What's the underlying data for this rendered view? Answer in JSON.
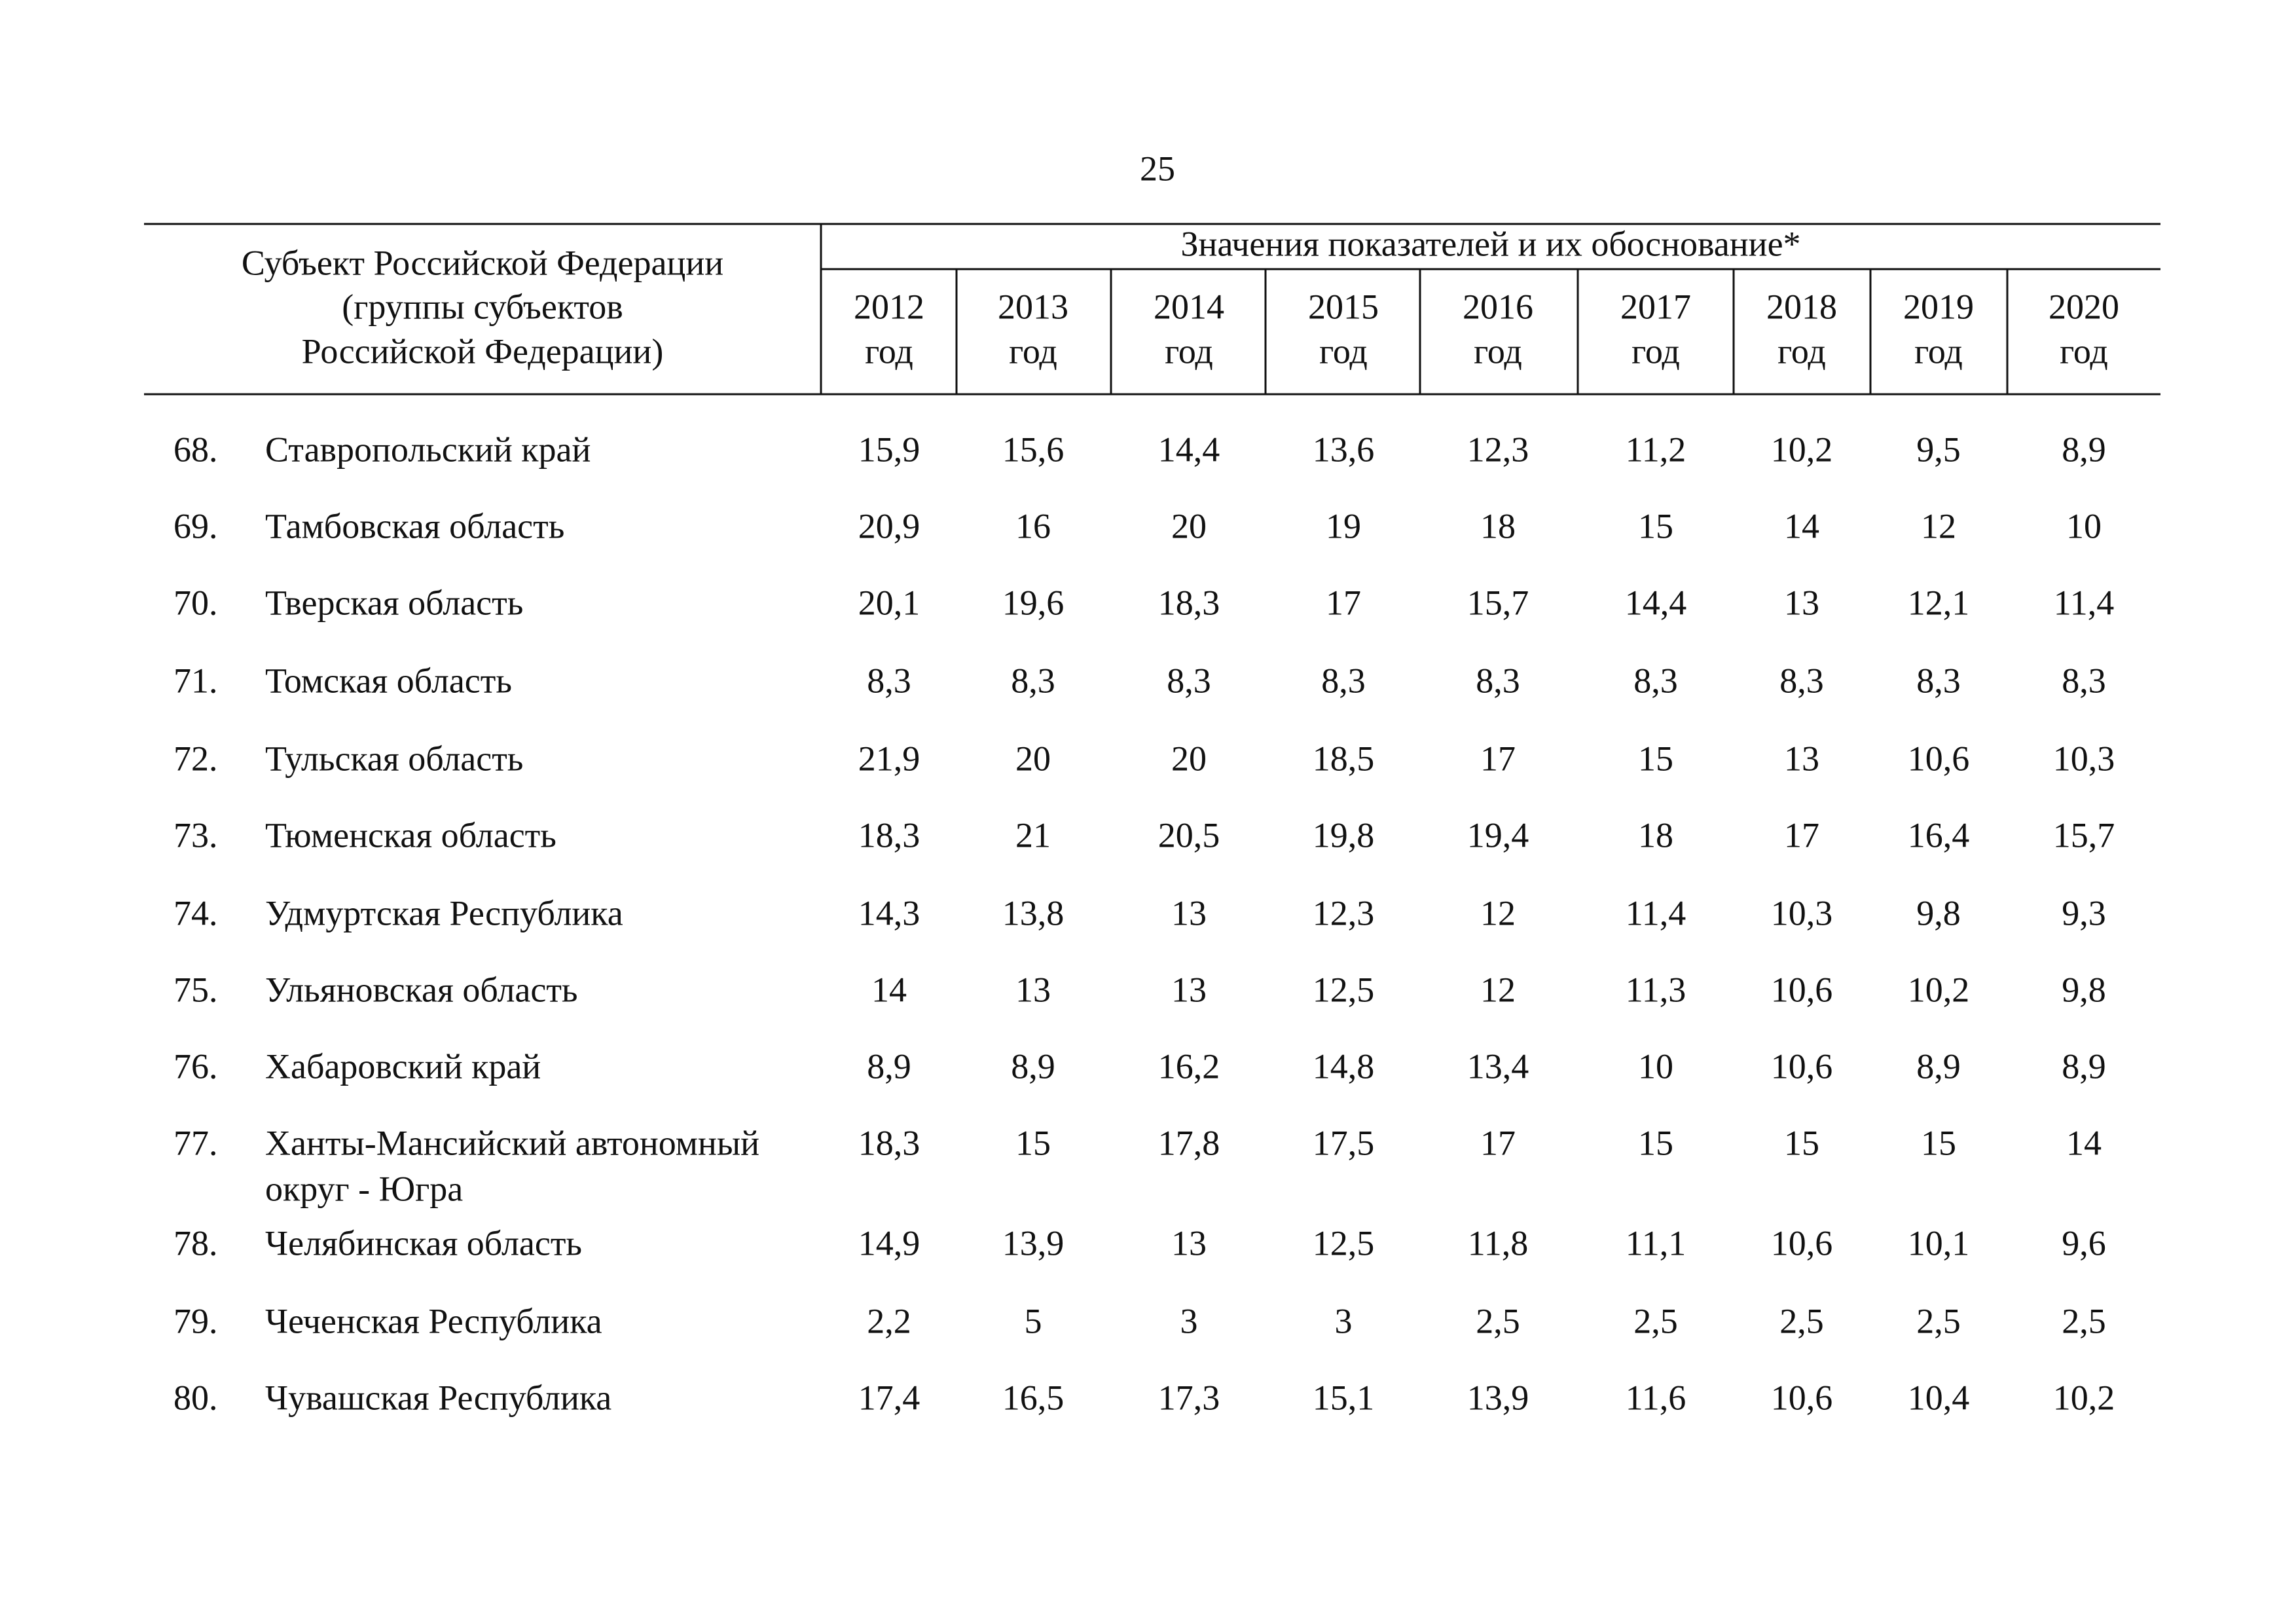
{
  "page_number": "25",
  "table": {
    "subject_header": [
      "Субъект Российской Федерации",
      "(группы субъектов",
      "Российской Федерации)"
    ],
    "values_header": "Значения показателей и их обоснование*",
    "columns": [
      {
        "year": "2012",
        "unit": "год"
      },
      {
        "year": "2013",
        "unit": "год"
      },
      {
        "year": "2014",
        "unit": "год"
      },
      {
        "year": "2015",
        "unit": "год"
      },
      {
        "year": "2016",
        "unit": "год"
      },
      {
        "year": "2017",
        "unit": "год"
      },
      {
        "year": "2018",
        "unit": "год"
      },
      {
        "year": "2019",
        "unit": "год"
      },
      {
        "year": "2020",
        "unit": "год"
      }
    ],
    "rows": [
      {
        "number": "68.",
        "name": [
          "Ставропольский край"
        ],
        "values": [
          "15,9",
          "15,6",
          "14,4",
          "13,6",
          "12,3",
          "11,2",
          "10,2",
          "9,5",
          "8,9"
        ]
      },
      {
        "number": "69.",
        "name": [
          "Тамбовская область"
        ],
        "values": [
          "20,9",
          "16",
          "20",
          "19",
          "18",
          "15",
          "14",
          "12",
          "10"
        ]
      },
      {
        "number": "70.",
        "name": [
          "Тверская область"
        ],
        "values": [
          "20,1",
          "19,6",
          "18,3",
          "17",
          "15,7",
          "14,4",
          "13",
          "12,1",
          "11,4"
        ]
      },
      {
        "number": "71.",
        "name": [
          "Томская область"
        ],
        "values": [
          "8,3",
          "8,3",
          "8,3",
          "8,3",
          "8,3",
          "8,3",
          "8,3",
          "8,3",
          "8,3"
        ]
      },
      {
        "number": "72.",
        "name": [
          "Тульская область"
        ],
        "values": [
          "21,9",
          "20",
          "20",
          "18,5",
          "17",
          "15",
          "13",
          "10,6",
          "10,3"
        ]
      },
      {
        "number": "73.",
        "name": [
          "Тюменская область"
        ],
        "values": [
          "18,3",
          "21",
          "20,5",
          "19,8",
          "19,4",
          "18",
          "17",
          "16,4",
          "15,7"
        ]
      },
      {
        "number": "74.",
        "name": [
          "Удмуртская Республика"
        ],
        "values": [
          "14,3",
          "13,8",
          "13",
          "12,3",
          "12",
          "11,4",
          "10,3",
          "9,8",
          "9,3"
        ]
      },
      {
        "number": "75.",
        "name": [
          "Ульяновская область"
        ],
        "values": [
          "14",
          "13",
          "13",
          "12,5",
          "12",
          "11,3",
          "10,6",
          "10,2",
          "9,8"
        ]
      },
      {
        "number": "76.",
        "name": [
          "Хабаровский край"
        ],
        "values": [
          "8,9",
          "8,9",
          "16,2",
          "14,8",
          "13,4",
          "10",
          "10,6",
          "8,9",
          "8,9"
        ]
      },
      {
        "number": "77.",
        "name": [
          "Ханты-Мансийский автономный",
          "округ - Югра"
        ],
        "values": [
          "18,3",
          "15",
          "17,8",
          "17,5",
          "17",
          "15",
          "15",
          "15",
          "14"
        ]
      },
      {
        "number": "78.",
        "name": [
          "Челябинская область"
        ],
        "values": [
          "14,9",
          "13,9",
          "13",
          "12,5",
          "11,8",
          "11,1",
          "10,6",
          "10,1",
          "9,6"
        ]
      },
      {
        "number": "79.",
        "name": [
          "Чеченская Республика"
        ],
        "values": [
          "2,2",
          "5",
          "3",
          "3",
          "2,5",
          "2,5",
          "2,5",
          "2,5",
          "2,5"
        ]
      },
      {
        "number": "80.",
        "name": [
          "Чувашская Республика"
        ],
        "values": [
          "17,4",
          "16,5",
          "17,3",
          "15,1",
          "13,9",
          "11,6",
          "10,6",
          "10,4",
          "10,2"
        ]
      }
    ]
  }
}
